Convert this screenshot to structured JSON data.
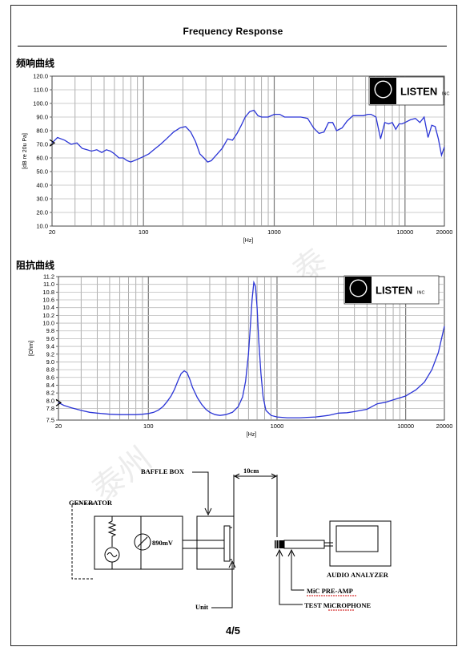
{
  "page": {
    "title": "Frequency    Response",
    "page_number": "4/5"
  },
  "logo": {
    "text": "LISTEN",
    "suffix": "INC"
  },
  "chart_data": [
    {
      "type": "line",
      "label": "频响曲线",
      "xscale": "log",
      "xlim": [
        20,
        20000
      ],
      "ylim": [
        10,
        120
      ],
      "y_ticks": [
        "120.0",
        "110.0",
        "100.0",
        "90.0",
        "80.0",
        "70.0",
        "60.0",
        "50.0",
        "40.0",
        "30.0",
        "20.0",
        "10.0"
      ],
      "x_ticks": [
        "20",
        "100",
        "1000",
        "10000",
        "20000"
      ],
      "xlabel": "[Hz]",
      "ylabel": "[dB re 20u Pa]",
      "grid": true,
      "series": [
        {
          "color": "#2b35d6",
          "x": [
            20,
            22,
            25,
            28,
            31,
            34,
            37,
            40,
            44,
            48,
            52,
            56,
            60,
            65,
            70,
            75,
            80,
            85,
            90,
            100,
            110,
            120,
            135,
            150,
            170,
            190,
            210,
            230,
            250,
            270,
            290,
            310,
            330,
            360,
            400,
            440,
            480,
            520,
            560,
            600,
            650,
            700,
            750,
            800,
            900,
            1000,
            1100,
            1200,
            1400,
            1600,
            1800,
            2000,
            2200,
            2400,
            2600,
            2800,
            3000,
            3300,
            3600,
            4000,
            4400,
            4800,
            5200,
            5500,
            6000,
            6500,
            7000,
            7500,
            8000,
            8500,
            9000,
            9500,
            10000,
            11000,
            12000,
            13000,
            14000,
            15000,
            16000,
            17000,
            18000,
            19000,
            20000
          ],
          "y": [
            71,
            75,
            73,
            70,
            71,
            67,
            66,
            65,
            66,
            64,
            66,
            65,
            63,
            60,
            60,
            58,
            57,
            58,
            59,
            61,
            63,
            66,
            70,
            74,
            79,
            82,
            83,
            79,
            72,
            63,
            60,
            57,
            58,
            62,
            67,
            74,
            73,
            78,
            84,
            90,
            94,
            95,
            91,
            90,
            90,
            92,
            92,
            90,
            90,
            90,
            89,
            82,
            78,
            79,
            86,
            86,
            80,
            82,
            87,
            91,
            91,
            91,
            92,
            92,
            90,
            74,
            86,
            85,
            86,
            81,
            85,
            85,
            86,
            88,
            89,
            86,
            90,
            75,
            84,
            83,
            74,
            62,
            68
          ]
        }
      ]
    },
    {
      "type": "line",
      "label": "阻抗曲线",
      "xscale": "log",
      "xlim": [
        20,
        20000
      ],
      "ylim": [
        7.5,
        11.2
      ],
      "y_ticks": [
        "11.2",
        "11.0",
        "10.8",
        "10.6",
        "10.4",
        "10.2",
        "10.0",
        "9.8",
        "9.6",
        "9.4",
        "9.2",
        "9.0",
        "8.8",
        "8.6",
        "8.4",
        "8.2",
        "8.0",
        "7.8",
        "7.5"
      ],
      "x_ticks": [
        "20",
        "100",
        "1000",
        "10000",
        "20000"
      ],
      "xlabel": "[Hz]",
      "ylabel": "[Ohm]",
      "grid": true,
      "series": [
        {
          "color": "#2b35d6",
          "x": [
            20,
            22,
            25,
            30,
            35,
            40,
            50,
            60,
            70,
            80,
            90,
            100,
            110,
            120,
            130,
            140,
            150,
            160,
            170,
            180,
            190,
            200,
            210,
            220,
            240,
            260,
            280,
            300,
            330,
            360,
            400,
            450,
            500,
            540,
            570,
            600,
            620,
            640,
            660,
            680,
            700,
            720,
            750,
            780,
            820,
            900,
            1000,
            1200,
            1500,
            2000,
            2500,
            3000,
            3500,
            4000,
            5000,
            6000,
            7000,
            8000,
            10000,
            12000,
            14000,
            16000,
            18000,
            20000
          ],
          "y": [
            7.95,
            7.88,
            7.82,
            7.75,
            7.7,
            7.68,
            7.65,
            7.64,
            7.64,
            7.64,
            7.65,
            7.67,
            7.7,
            7.76,
            7.85,
            7.98,
            8.12,
            8.3,
            8.52,
            8.7,
            8.77,
            8.72,
            8.55,
            8.35,
            8.08,
            7.9,
            7.78,
            7.7,
            7.64,
            7.62,
            7.64,
            7.7,
            7.85,
            8.1,
            8.5,
            9.2,
            9.9,
            10.6,
            11.05,
            10.95,
            10.4,
            9.6,
            8.7,
            8.1,
            7.75,
            7.62,
            7.58,
            7.56,
            7.56,
            7.58,
            7.62,
            7.68,
            7.69,
            7.72,
            7.78,
            7.92,
            7.96,
            8.02,
            8.12,
            8.28,
            8.48,
            8.8,
            9.25,
            9.92
          ]
        }
      ]
    }
  ],
  "diagram": {
    "generator_label": "GENERATOR",
    "baffle_label": "BAFFLE BOX",
    "distance_label": "10cm",
    "voltage_label": "890mV",
    "unit_label": "Unit",
    "analyzer_label": "AUDIO ANALYZER",
    "preamp_label": "MiC PRE-AMP",
    "mic_label": "TEST MiCROPHONE"
  }
}
